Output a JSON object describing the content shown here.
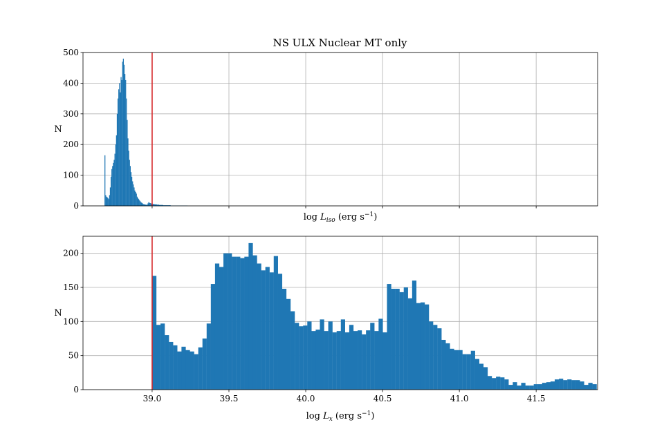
{
  "figure": {
    "title": "NS ULX Nuclear MT only",
    "colors": {
      "bar": "#1f77b4",
      "threshold": "#d62728"
    }
  },
  "chart_data": [
    {
      "type": "bar",
      "panel": "top",
      "title": "NS ULX Nuclear MT only",
      "xlabel": {
        "prefix": "log ",
        "sym": "L",
        "sub": "iso",
        "unit": " (erg s",
        "sup": "−1",
        "close": ")"
      },
      "ylabel": "N",
      "xlim": [
        38.55,
        41.9
      ],
      "ylim": [
        0,
        500
      ],
      "xticks": [
        39.0,
        39.5,
        40.0,
        40.5,
        41.0,
        41.5
      ],
      "xtick_labels_visible": false,
      "yticks": [
        0,
        100,
        200,
        300,
        400,
        500
      ],
      "ytick_labels": [
        "0",
        "100",
        "200",
        "300",
        "400",
        "500"
      ],
      "grid": true,
      "threshold_x": 39.0,
      "bin_start": 38.69,
      "bin_width": 0.005,
      "counts": [
        165,
        35,
        30,
        28,
        25,
        22,
        35,
        60,
        95,
        120,
        130,
        140,
        150,
        170,
        200,
        230,
        300,
        350,
        380,
        400,
        370,
        420,
        410,
        470,
        480,
        460,
        430,
        410,
        350,
        280,
        220,
        180,
        150,
        130,
        110,
        95,
        80,
        70,
        60,
        50,
        45,
        40,
        30,
        25,
        22,
        18,
        15,
        12,
        10,
        8,
        6,
        5,
        5,
        4,
        4,
        3,
        8,
        12,
        10,
        9,
        8,
        7,
        7,
        6,
        6,
        5,
        5,
        5,
        4,
        4,
        4,
        3,
        3,
        3,
        3,
        3,
        2,
        2,
        2,
        2,
        2,
        2,
        2,
        2,
        2,
        2,
        1,
        1,
        1,
        1,
        1,
        1,
        1,
        1,
        1,
        1,
        1,
        1,
        1,
        1,
        1,
        1,
        1,
        1,
        1,
        1,
        1,
        1
      ]
    },
    {
      "type": "bar",
      "panel": "bottom",
      "xlabel": {
        "prefix": "log ",
        "sym": "L",
        "sub": "x",
        "unit": " (erg s",
        "sup": "−1",
        "close": ")"
      },
      "ylabel": "N",
      "xlim": [
        38.55,
        41.9
      ],
      "ylim": [
        0,
        225
      ],
      "xticks": [
        39.0,
        39.5,
        40.0,
        40.5,
        41.0,
        41.5
      ],
      "xtick_labels": [
        "39.0",
        "39.5",
        "40.0",
        "40.5",
        "41.0",
        "41.5"
      ],
      "yticks": [
        0,
        50,
        100,
        150,
        200
      ],
      "ytick_labels": [
        "0",
        "50",
        "100",
        "150",
        "200"
      ],
      "grid": true,
      "threshold_x": 39.0,
      "bin_start": 39.0,
      "bin_width": 0.0273,
      "counts": [
        167,
        95,
        97,
        80,
        70,
        65,
        56,
        63,
        58,
        56,
        52,
        62,
        75,
        97,
        155,
        185,
        180,
        200,
        200,
        195,
        195,
        193,
        195,
        215,
        197,
        185,
        175,
        180,
        172,
        196,
        170,
        148,
        133,
        115,
        98,
        93,
        94,
        100,
        86,
        88,
        103,
        86,
        100,
        84,
        86,
        103,
        84,
        95,
        86,
        87,
        81,
        87,
        98,
        86,
        104,
        84,
        155,
        148,
        148,
        143,
        150,
        134,
        160,
        127,
        128,
        125,
        100,
        95,
        90,
        73,
        68,
        60,
        58,
        58,
        52,
        52,
        57,
        45,
        38,
        33,
        20,
        17,
        19,
        18,
        15,
        7,
        11,
        6,
        10,
        6,
        6,
        8,
        8,
        10,
        11,
        12,
        15,
        16,
        14,
        15,
        14,
        14,
        12,
        7,
        10,
        8
      ]
    }
  ]
}
